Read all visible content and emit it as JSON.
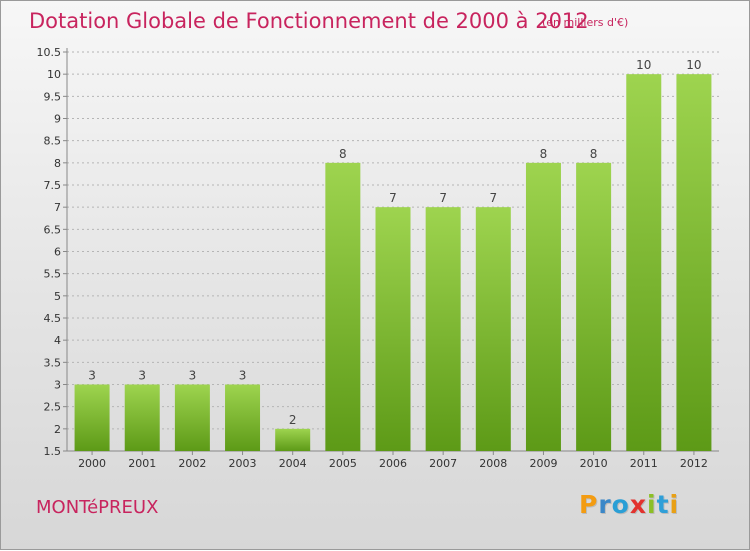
{
  "title": "Dotation Globale de Fonctionnement de 2000 à 2012",
  "unit_note": "(en milliers d'€)",
  "place_name": "MONTéPREUX",
  "brand": {
    "letters": [
      "P",
      "r",
      "o",
      "x",
      "i",
      "t",
      "i"
    ],
    "colors": [
      "#f39c12",
      "#3a87c8",
      "#2a9fd6",
      "#e2322e",
      "#8cbf26",
      "#2f9fd8",
      "#e8a015"
    ]
  },
  "colors": {
    "title": "#c8245e",
    "bar_top": "#9ed44f",
    "bar_bottom": "#5d9a17",
    "grid": "#b5b5b5"
  },
  "chart_data": {
    "type": "bar",
    "categories": [
      "2000",
      "2001",
      "2002",
      "2003",
      "2004",
      "2005",
      "2006",
      "2007",
      "2008",
      "2009",
      "2010",
      "2011",
      "2012"
    ],
    "values": [
      3,
      3,
      3,
      3,
      2,
      8,
      7,
      7,
      7,
      8,
      8,
      10,
      10
    ],
    "data_labels": [
      "3",
      "3",
      "3",
      "3",
      "2",
      "8",
      "7",
      "7",
      "7",
      "8",
      "8",
      "10",
      "10"
    ],
    "ylim": [
      1.5,
      10.5
    ],
    "y_ticks": [
      "1.5",
      "2",
      "2.5",
      "3",
      "3.5",
      "4",
      "4.5",
      "5",
      "5.5",
      "6",
      "6.5",
      "7",
      "7.5",
      "8",
      "8.5",
      "9",
      "9.5",
      "10",
      "10.5"
    ],
    "grid": true
  }
}
